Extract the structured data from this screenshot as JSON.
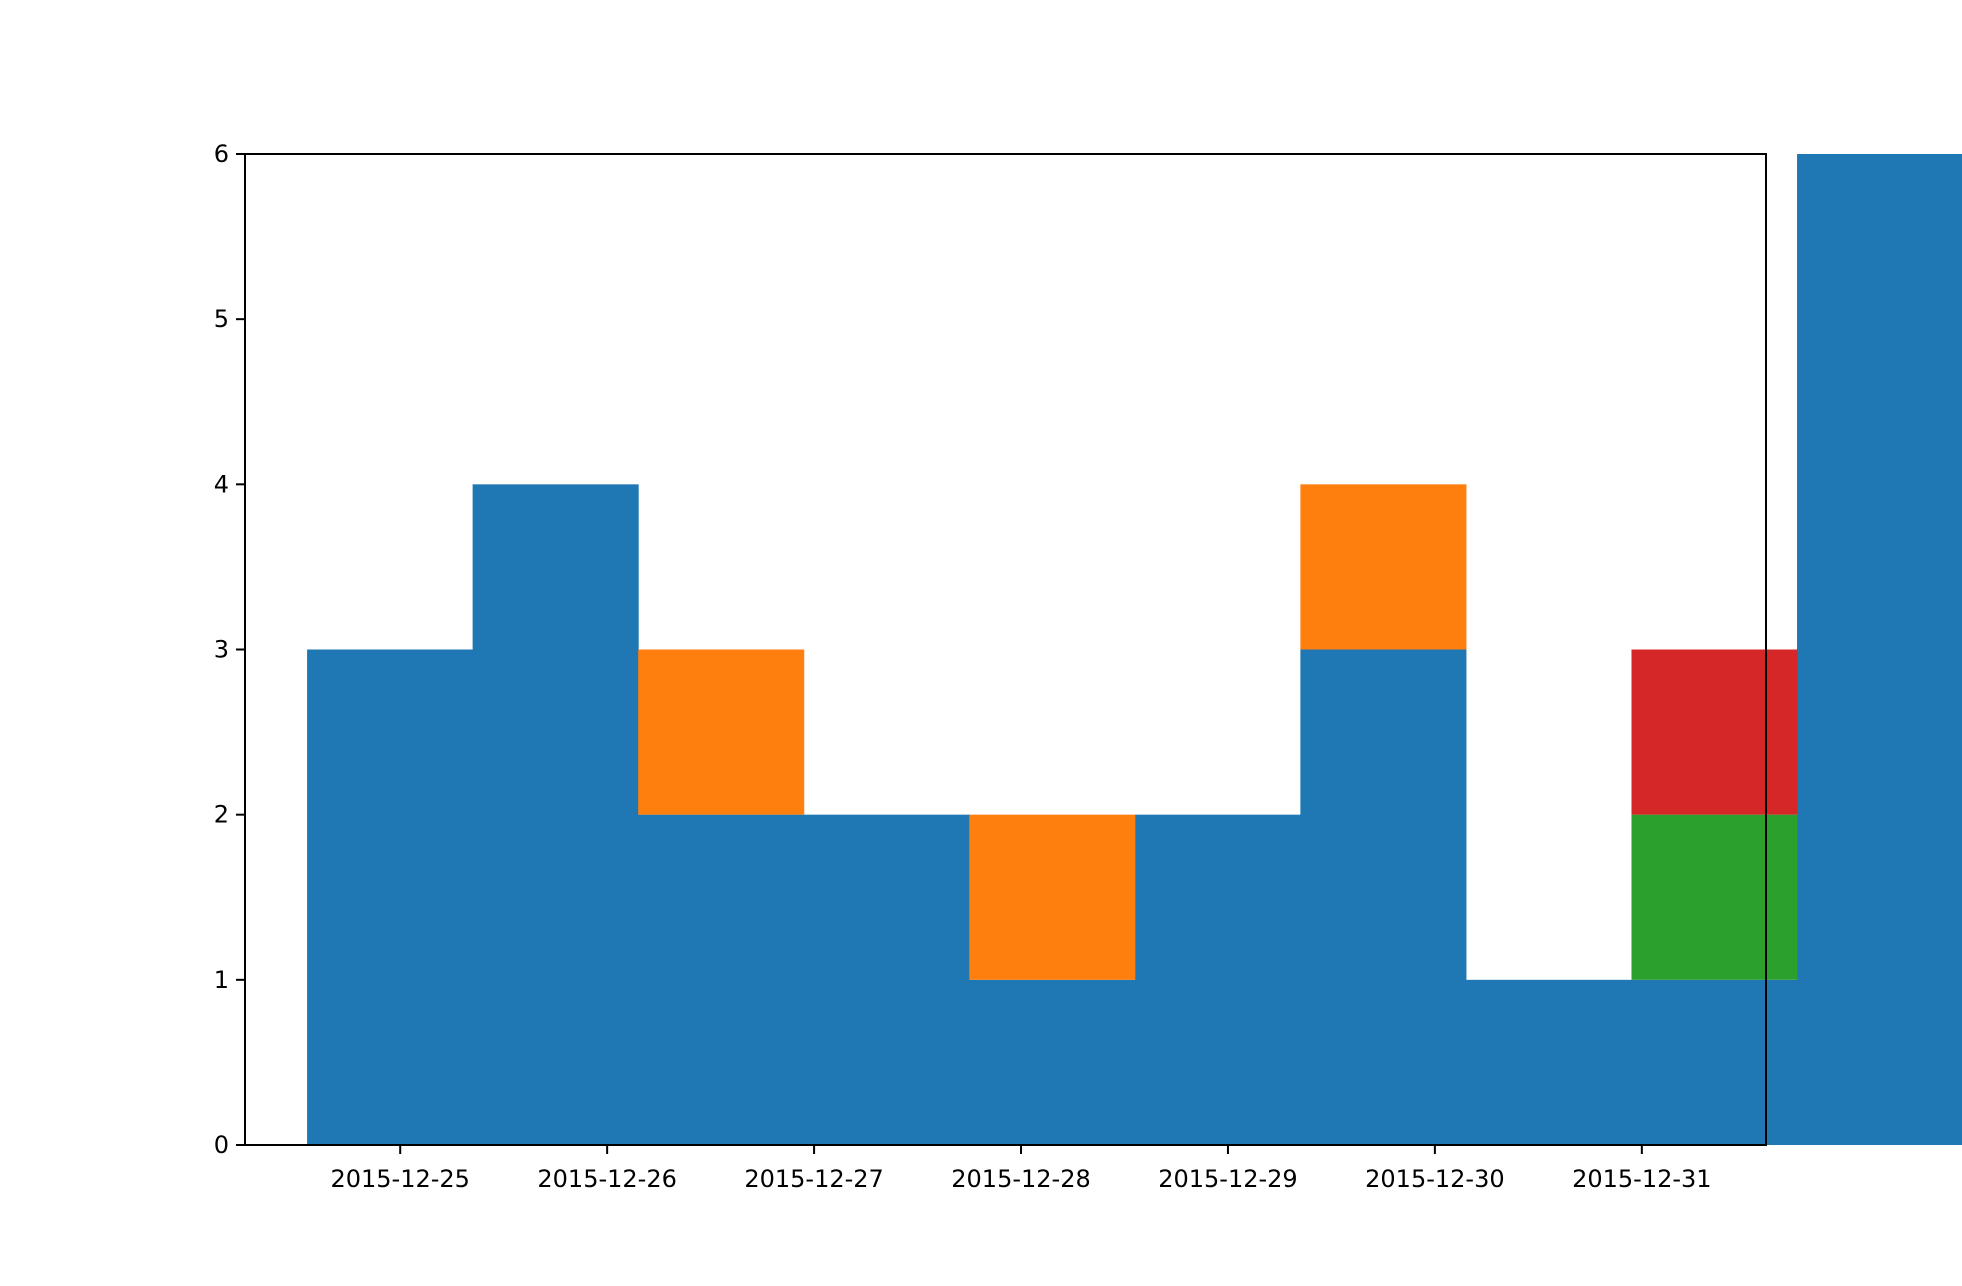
{
  "chart_data": {
    "type": "bar",
    "stacked": true,
    "bin_width_days": 0.8,
    "x": [
      "2015-12-24T13:12",
      "2015-12-25T08:24",
      "2015-12-26T03:36",
      "2015-12-26T22:48",
      "2015-12-27T18:00",
      "2015-12-28T13:12",
      "2015-12-29T08:24",
      "2015-12-30T03:36",
      "2015-12-30T22:48",
      "2015-12-31T18:00"
    ],
    "series": [
      {
        "color": "#1f77b4",
        "values": [
          3,
          4,
          2,
          2,
          1,
          2,
          3,
          1,
          1,
          6
        ]
      },
      {
        "color": "#ff7f0e",
        "values": [
          0,
          0,
          1,
          0,
          1,
          0,
          1,
          0,
          0,
          0
        ]
      },
      {
        "color": "#2ca02c",
        "values": [
          0,
          0,
          0,
          0,
          0,
          0,
          0,
          0,
          1,
          0
        ]
      },
      {
        "color": "#d62728",
        "values": [
          0,
          0,
          0,
          0,
          0,
          0,
          0,
          0,
          1,
          0
        ]
      }
    ],
    "xlim": [
      "2015-12-24T06:00",
      "2015-12-31T14:24"
    ],
    "ylim": [
      0,
      6
    ],
    "x_ticks": [
      "2015-12-25",
      "2015-12-26",
      "2015-12-27",
      "2015-12-28",
      "2015-12-29",
      "2015-12-30",
      "2015-12-31"
    ],
    "y_ticks": [
      "0",
      "1",
      "2",
      "3",
      "4",
      "5",
      "6"
    ],
    "title": "",
    "xlabel": "",
    "ylabel": "",
    "grid": false,
    "legend": "none"
  }
}
